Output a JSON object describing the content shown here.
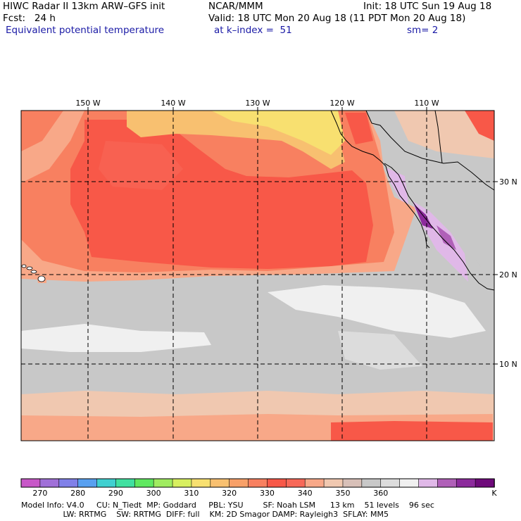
{
  "header": {
    "title": "HIWC Radar II 13km ARW–GFS init",
    "org": "NCAR/MMM",
    "init": "Init: 18 UTC Sun 19 Aug 18",
    "forecast": "Fcst:   24 h",
    "valid": "Valid: 18 UTC Mon 20 Aug 18 (11 PDT Mon 20 Aug 18)",
    "field": "Equivalent potential temperature",
    "level": "at k–index =  51",
    "smoothing": "sm= 2"
  },
  "map": {
    "lon_labels": [
      "150 W",
      "140 W",
      "130 W",
      "120 W",
      "110 W"
    ],
    "lat_labels": [
      "30 N",
      "20 N",
      "10 N"
    ],
    "grid": "dashed"
  },
  "colorbar": {
    "colors": [
      "#c858c8",
      "#a070d8",
      "#8080e8",
      "#58a0f0",
      "#40d0d0",
      "#40e0a0",
      "#60e860",
      "#a0ec60",
      "#d8f060",
      "#f8e070",
      "#f8c070",
      "#f8a068",
      "#f88060",
      "#f85848",
      "#f86858",
      "#f8a888",
      "#f0c8b0",
      "#d8c0b8",
      "#c8c8c8",
      "#dcdcdc",
      "#f0f0f0",
      "#e0b8e8",
      "#b060b8",
      "#8c2a9c",
      "#6e0a7a"
    ],
    "labels": [
      "270",
      "280",
      "290",
      "300",
      "310",
      "320",
      "330",
      "340",
      "350",
      "360",
      "K"
    ]
  },
  "footer": {
    "line1": "Model Info: V4.0     CU: N_Tiedt  MP: Goddard     PBL: YSU        SF: Noah LSM      13 km    51 levels    96 sec",
    "line2": "                 LW: RRTMG    SW: RRTMG  DIFF: full    KM: 2D Smagor DAMP: Rayleigh3  SFLAY: MM5"
  }
}
